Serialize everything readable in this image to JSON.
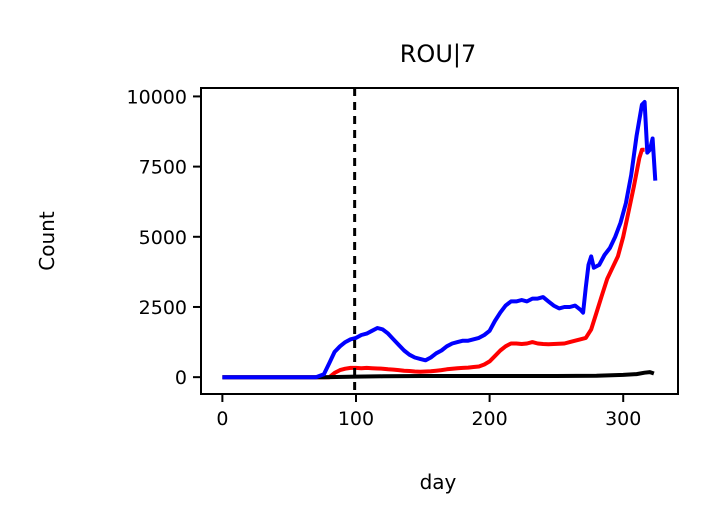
{
  "chart_data": {
    "type": "line",
    "title": "ROU|7",
    "xlabel": "day",
    "ylabel": "Count",
    "xlim": [
      -16,
      341
    ],
    "ylim": [
      -600,
      10300
    ],
    "xticks": [
      0,
      100,
      200,
      300
    ],
    "yticks": [
      0,
      2500,
      5000,
      7500,
      10000
    ],
    "xtick_labels": [
      "0",
      "100",
      "200",
      "300"
    ],
    "ytick_labels": [
      "0",
      "2500",
      "5000",
      "7500",
      "10000"
    ],
    "vline": {
      "x": 99,
      "style": "dashed",
      "color": "#000000"
    },
    "grid": false,
    "series": [
      {
        "color": "#0000ff",
        "x": [
          0,
          70,
          76,
          80,
          84,
          88,
          92,
          96,
          100,
          104,
          108,
          112,
          116,
          120,
          124,
          128,
          132,
          136,
          140,
          144,
          148,
          152,
          156,
          160,
          164,
          168,
          172,
          176,
          180,
          184,
          188,
          192,
          196,
          200,
          204,
          208,
          212,
          216,
          220,
          224,
          228,
          232,
          236,
          240,
          244,
          248,
          252,
          256,
          260,
          264,
          268,
          270,
          272,
          274,
          276,
          278,
          282,
          286,
          290,
          294,
          298,
          302,
          306,
          310,
          314,
          316,
          318,
          320,
          322,
          324
        ],
        "y": [
          0,
          0,
          100,
          500,
          900,
          1100,
          1250,
          1350,
          1400,
          1500,
          1550,
          1650,
          1750,
          1700,
          1550,
          1350,
          1150,
          950,
          800,
          700,
          650,
          600,
          700,
          850,
          950,
          1100,
          1200,
          1250,
          1300,
          1300,
          1350,
          1400,
          1500,
          1650,
          2000,
          2300,
          2550,
          2700,
          2700,
          2750,
          2700,
          2800,
          2800,
          2850,
          2700,
          2550,
          2450,
          2500,
          2500,
          2550,
          2400,
          2300,
          3200,
          4000,
          4300,
          3900,
          4000,
          4350,
          4600,
          5000,
          5500,
          6200,
          7200,
          8600,
          9700,
          9800,
          8000,
          8100,
          8500,
          7000
        ]
      },
      {
        "color": "#ff0000",
        "x": [
          0,
          80,
          84,
          88,
          92,
          96,
          100,
          104,
          108,
          112,
          116,
          120,
          124,
          128,
          132,
          136,
          140,
          144,
          148,
          152,
          156,
          160,
          164,
          168,
          172,
          176,
          180,
          184,
          188,
          192,
          196,
          200,
          204,
          208,
          212,
          216,
          220,
          224,
          228,
          232,
          236,
          240,
          244,
          248,
          252,
          256,
          260,
          264,
          268,
          272,
          276,
          280,
          284,
          288,
          292,
          296,
          300,
          304,
          308,
          312,
          314,
          316
        ],
        "y": [
          0,
          0,
          150,
          250,
          300,
          330,
          330,
          320,
          330,
          320,
          310,
          300,
          280,
          270,
          250,
          230,
          220,
          200,
          190,
          200,
          210,
          230,
          250,
          280,
          300,
          320,
          330,
          340,
          360,
          380,
          450,
          560,
          750,
          950,
          1100,
          1200,
          1200,
          1180,
          1200,
          1250,
          1200,
          1180,
          1170,
          1180,
          1190,
          1200,
          1250,
          1300,
          1350,
          1400,
          1700,
          2300,
          2900,
          3500,
          3900,
          4300,
          5000,
          5900,
          6800,
          7800,
          8100,
          8100
        ]
      },
      {
        "color": "#000000",
        "x": [
          0,
          76,
          90,
          100,
          120,
          150,
          200,
          250,
          280,
          300,
          310,
          316,
          320,
          323
        ],
        "y": [
          0,
          0,
          10,
          20,
          30,
          40,
          40,
          40,
          50,
          80,
          110,
          160,
          180,
          130
        ]
      }
    ]
  }
}
